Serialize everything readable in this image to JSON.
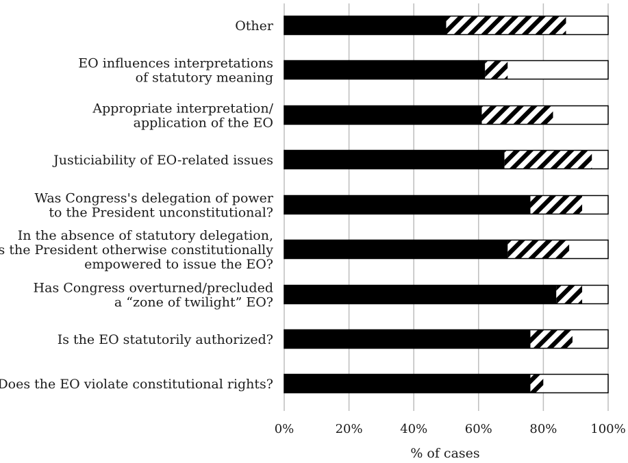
{
  "chart_data": {
    "type": "bar",
    "orientation": "horizontal",
    "stacked": true,
    "categories": [
      [
        "Other"
      ],
      [
        "EO influences interpretations",
        "of statutory meaning"
      ],
      [
        "Appropriate interpretation/",
        "application of the EO"
      ],
      [
        "Justiciability of EO-related issues"
      ],
      [
        "Was Congress's delegation of power",
        "to the President unconstitutional?"
      ],
      [
        "In the absence of statutory delegation,",
        "is the President otherwise constitutionally",
        "empowered to issue the EO?"
      ],
      [
        "Has Congress overturned/precluded",
        "a “zone of twilight” EO?"
      ],
      [
        "Is the EO statutorily authorized?"
      ],
      [
        "Does the EO violate constitutional rights?"
      ]
    ],
    "series": [
      {
        "color": "#000000",
        "pattern": "solid",
        "values": [
          50,
          62,
          61,
          68,
          76,
          69,
          84,
          76,
          76
        ]
      },
      {
        "color": "#000000",
        "pattern": "hatched",
        "values": [
          37,
          7,
          22,
          27,
          16,
          19,
          8,
          13,
          4
        ]
      },
      {
        "color": "#ffffff",
        "pattern": "white",
        "values": [
          13,
          31,
          17,
          5,
          8,
          12,
          8,
          11,
          20
        ]
      }
    ],
    "xlabel": "% of cases",
    "x_ticks": [
      "0%",
      "20%",
      "40%",
      "60%",
      "80%",
      "100%"
    ],
    "xlim": [
      0,
      100
    ],
    "grid": "vertical"
  }
}
